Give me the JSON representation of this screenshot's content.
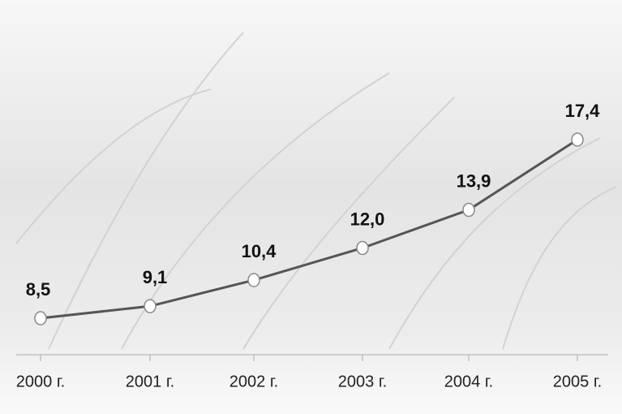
{
  "chart_data": {
    "type": "line",
    "categories": [
      "2000 г.",
      "2001 г.",
      "2002 г.",
      "2003 г.",
      "2004 г.",
      "2005 г."
    ],
    "values": [
      8.5,
      9.1,
      10.4,
      12.0,
      13.9,
      17.4
    ],
    "value_labels": [
      "8,5",
      "9,1",
      "10,4",
      "12,0",
      "13,9",
      "17,4"
    ],
    "color": "#555555"
  }
}
